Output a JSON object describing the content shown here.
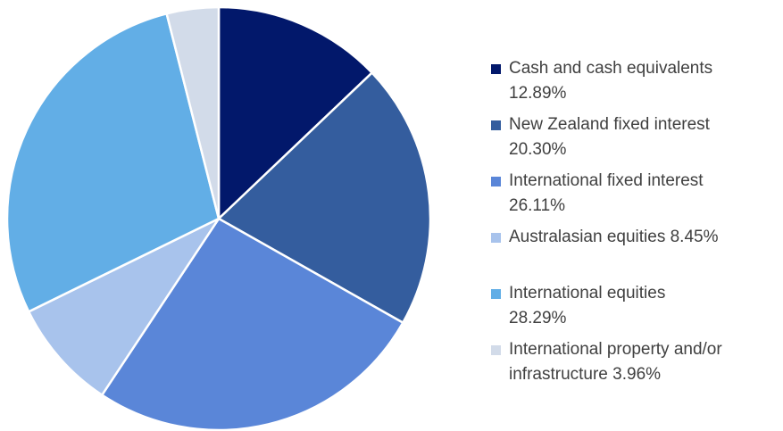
{
  "chart_data": {
    "type": "pie",
    "categories": [
      "Cash and cash equivalents",
      "New Zealand fixed interest",
      "International fixed interest",
      "Australasian equities",
      "International equities",
      "International property and/or infrastructure"
    ],
    "values": [
      12.89,
      20.3,
      26.11,
      8.45,
      28.29,
      3.96
    ],
    "value_labels": [
      "12.89%",
      "20.30%",
      "26.11%",
      "8.45%",
      "28.29%",
      "3.96%"
    ],
    "colors": [
      "#02186b",
      "#345d9e",
      "#5a86d8",
      "#a8c3ec",
      "#62aee6",
      "#d2dbe9"
    ]
  }
}
